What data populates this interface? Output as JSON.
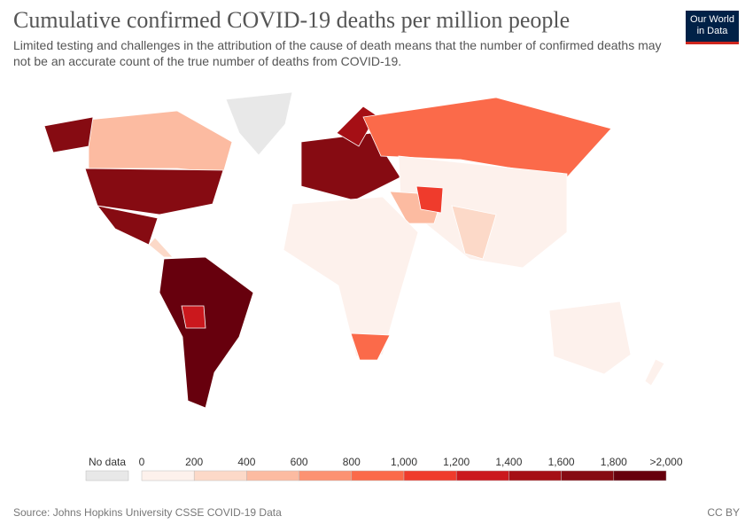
{
  "header": {
    "title": "Cumulative confirmed COVID-19 deaths per million people",
    "subtitle": "Limited testing and challenges in the attribution of the cause of death means that the number of confirmed deaths may not be an accurate count of the true number of deaths from COVID-19.",
    "logo": [
      "Our World",
      "in Data"
    ]
  },
  "legend": {
    "no_data": "No data",
    "no_data_color": "#e8e8e8",
    "labels": [
      "0",
      "200",
      "400",
      "600",
      "800",
      "1,000",
      "1,200",
      "1,400",
      "1,600",
      "1,800",
      ">2,000"
    ],
    "colors": [
      "#fdf1ec",
      "#fcd9c8",
      "#fcbba1",
      "#fc9272",
      "#fb6a4a",
      "#ef3b2c",
      "#cb181d",
      "#a50f15",
      "#860b12",
      "#67000d"
    ]
  },
  "footer": {
    "source": "Source: Johns Hopkins University CSSE COVID-19 Data",
    "license": "CC BY"
  }
}
